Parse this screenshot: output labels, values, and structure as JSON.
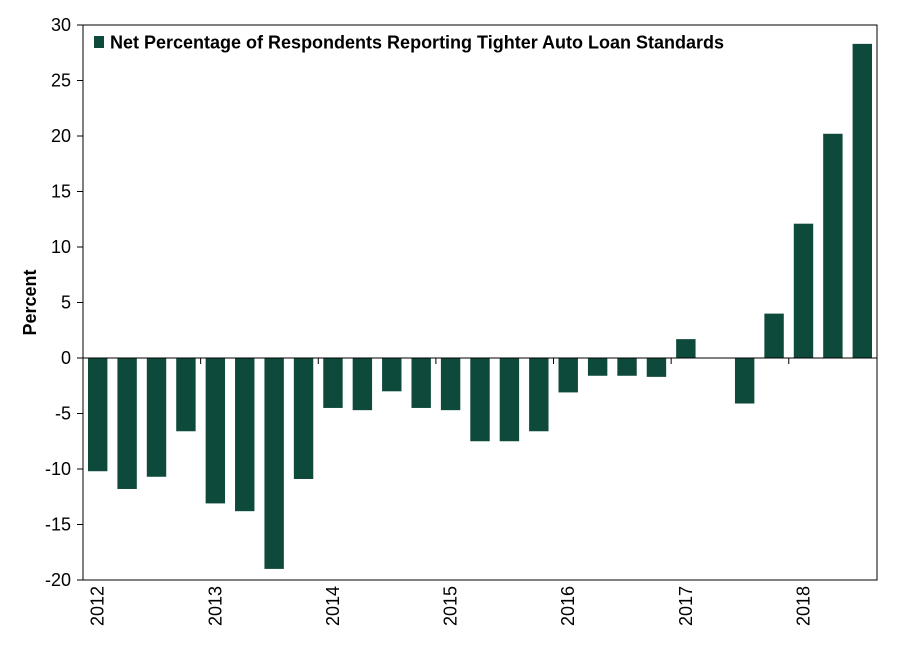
{
  "chart_data": {
    "type": "bar",
    "ylabel": "Percent",
    "ylim": [
      -20,
      30
    ],
    "yticks": [
      30,
      25,
      20,
      15,
      10,
      5,
      0,
      -5,
      -10,
      -15,
      -20
    ],
    "xtick_labels": [
      "2012",
      "2013",
      "2014",
      "2015",
      "2016",
      "2017",
      "2018"
    ],
    "bar_color": "#0e4a3c",
    "grid": false,
    "legend_position": "top-left",
    "series": [
      {
        "name": "Net Percentage of Respondents Reporting Tighter Auto Loan Standards",
        "values": [
          -10.2,
          -11.8,
          -10.7,
          -6.6,
          -13.1,
          -13.8,
          -19.0,
          -10.9,
          -4.5,
          -4.7,
          -3.0,
          -4.5,
          -4.7,
          -7.5,
          -7.5,
          -6.6,
          -3.1,
          -1.6,
          -1.6,
          -1.7,
          1.7,
          null,
          -4.1,
          4.0,
          12.1,
          20.2,
          28.3
        ]
      }
    ]
  }
}
